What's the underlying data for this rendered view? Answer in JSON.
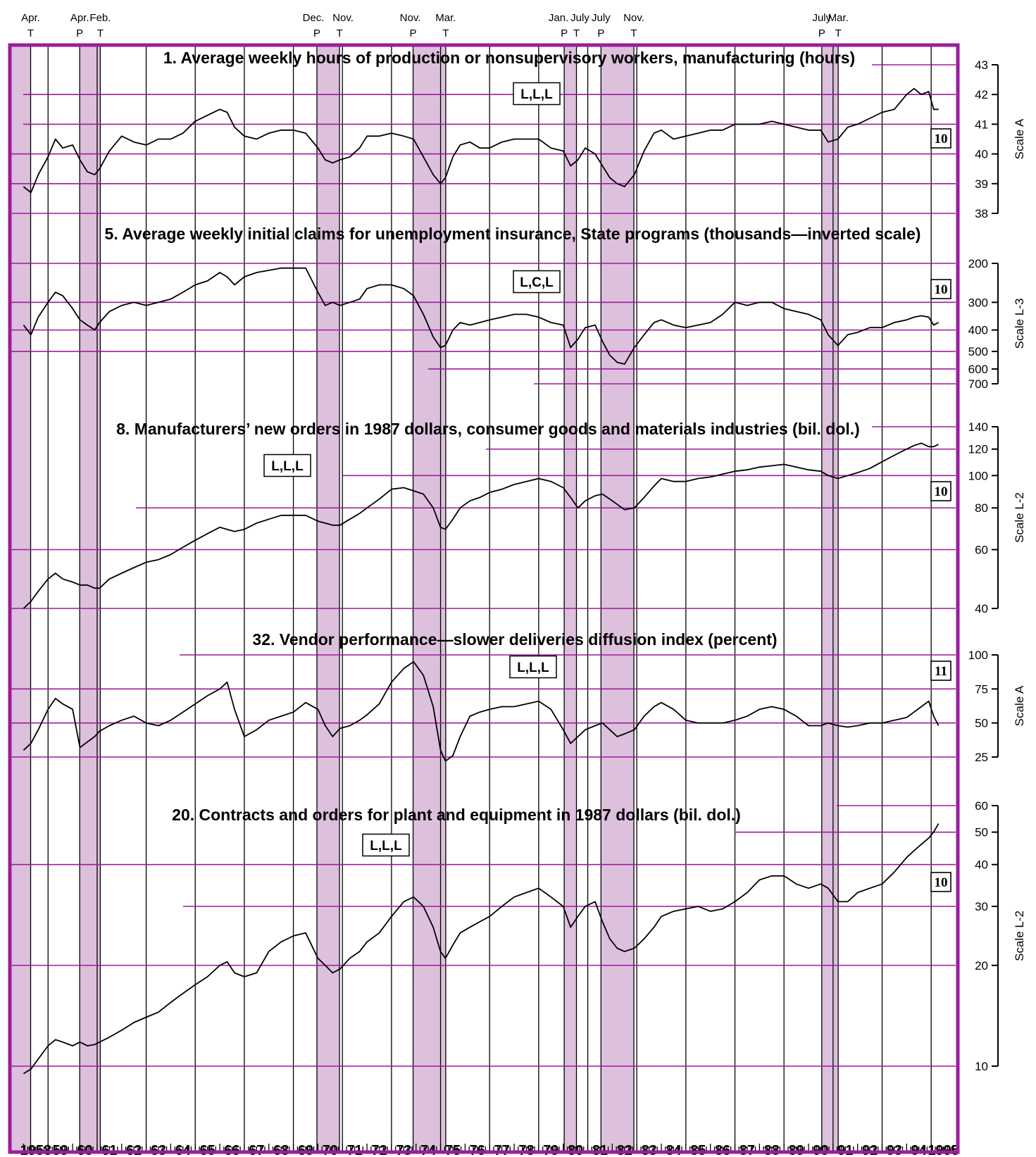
{
  "colors": {
    "frame": "#9c1c9c",
    "grid": "#9c1c9c",
    "shade": "#dcc0dc",
    "line": "#000000"
  },
  "turning_points": [
    {
      "date": "Apr.",
      "type": "T",
      "year": 1958.29
    },
    {
      "date": "Apr.",
      "type": "P",
      "year": 1960.29
    },
    {
      "date": "Feb.",
      "type": "T",
      "year": 1961.13
    },
    {
      "date": "Dec.",
      "type": "P",
      "year": 1969.96
    },
    {
      "date": "Nov.",
      "type": "T",
      "year": 1970.88
    },
    {
      "date": "Nov.",
      "type": "P",
      "year": 1973.88
    },
    {
      "date": "Mar.",
      "type": "T",
      "year": 1975.21
    },
    {
      "date": "Jan.",
      "type": "P",
      "year": 1980.04
    },
    {
      "date": "July",
      "type": "T",
      "year": 1980.54
    },
    {
      "date": "July",
      "type": "P",
      "year": 1981.54
    },
    {
      "date": "Nov.",
      "type": "T",
      "year": 1982.88
    },
    {
      "date": "July",
      "type": "P",
      "year": 1990.54
    },
    {
      "date": "Mar.",
      "type": "T",
      "year": 1991.21
    }
  ],
  "recessions": [
    [
      1957.5,
      1958.29
    ],
    [
      1960.29,
      1961.13
    ],
    [
      1969.96,
      1970.88
    ],
    [
      1973.88,
      1975.21
    ],
    [
      1980.04,
      1980.54
    ],
    [
      1981.54,
      1982.88
    ],
    [
      1990.54,
      1991.21
    ]
  ],
  "x_axis": {
    "labels": [
      "1958",
      "59",
      "60",
      "61",
      "62",
      "63",
      "64",
      "65",
      "66",
      "67",
      "68",
      "69",
      "70",
      "71",
      "72",
      "73",
      "74",
      "75",
      "76",
      "77",
      "78",
      "79",
      "80",
      "81",
      "82",
      "83",
      "84",
      "85",
      "86",
      "87",
      "88",
      "89",
      "90",
      "91",
      "92",
      "93",
      "94",
      "1995"
    ]
  },
  "chart_data": [
    {
      "type": "line",
      "title": "1. Average  weekly hours of production or nonsupervisory workers, manufacturing (hours)",
      "code": "L,L,L",
      "box": "10",
      "scale_label": "Scale A",
      "scale": "linear",
      "ticks": [
        "43",
        "42",
        "41",
        "40",
        "39",
        "38"
      ],
      "ylim": [
        38,
        43
      ],
      "x": [
        1958.0,
        1958.3,
        1958.6,
        1959.0,
        1959.3,
        1959.6,
        1960.0,
        1960.3,
        1960.6,
        1960.9,
        1961.1,
        1961.5,
        1962.0,
        1962.5,
        1963.0,
        1963.5,
        1964.0,
        1964.5,
        1965.0,
        1965.5,
        1966.0,
        1966.3,
        1966.6,
        1967.0,
        1967.5,
        1968.0,
        1968.5,
        1969.0,
        1969.5,
        1970.0,
        1970.3,
        1970.6,
        1970.9,
        1971.3,
        1971.7,
        1972.0,
        1972.5,
        1973.0,
        1973.5,
        1973.9,
        1974.3,
        1974.7,
        1975.0,
        1975.2,
        1975.5,
        1975.8,
        1976.2,
        1976.6,
        1977.0,
        1977.5,
        1978.0,
        1978.5,
        1979.0,
        1979.5,
        1980.0,
        1980.3,
        1980.6,
        1980.9,
        1981.3,
        1981.6,
        1981.9,
        1982.2,
        1982.5,
        1982.9,
        1983.3,
        1983.7,
        1984.0,
        1984.5,
        1985.0,
        1985.5,
        1986.0,
        1986.5,
        1987.0,
        1987.5,
        1988.0,
        1988.5,
        1989.0,
        1989.5,
        1990.0,
        1990.5,
        1990.8,
        1991.2,
        1991.6,
        1992.0,
        1992.5,
        1993.0,
        1993.5,
        1994.0,
        1994.3,
        1994.6,
        1994.9,
        1995.1,
        1995.3
      ],
      "values": [
        38.9,
        38.7,
        39.3,
        39.9,
        40.5,
        40.2,
        40.3,
        39.8,
        39.4,
        39.3,
        39.5,
        40.1,
        40.6,
        40.4,
        40.3,
        40.5,
        40.5,
        40.7,
        41.1,
        41.3,
        41.5,
        41.4,
        40.9,
        40.6,
        40.5,
        40.7,
        40.8,
        40.8,
        40.7,
        40.2,
        39.8,
        39.7,
        39.8,
        39.9,
        40.2,
        40.6,
        40.6,
        40.7,
        40.6,
        40.5,
        39.9,
        39.3,
        39.0,
        39.2,
        39.9,
        40.3,
        40.4,
        40.2,
        40.2,
        40.4,
        40.5,
        40.5,
        40.5,
        40.2,
        40.1,
        39.6,
        39.8,
        40.2,
        40.0,
        39.6,
        39.2,
        39.0,
        38.9,
        39.3,
        40.1,
        40.7,
        40.8,
        40.5,
        40.6,
        40.7,
        40.8,
        40.8,
        41.0,
        41.0,
        41.0,
        41.1,
        41.0,
        40.9,
        40.8,
        40.8,
        40.4,
        40.5,
        40.9,
        41.0,
        41.2,
        41.4,
        41.5,
        42.0,
        42.2,
        42.0,
        42.1,
        41.5,
        41.5
      ]
    },
    {
      "type": "line",
      "title": "5. Average weekly initial claims for unemployment  insurance,  State programs (thousands—inverted scale)",
      "code": "L,C,L",
      "box": "10",
      "scale_label": "Scale L-3",
      "scale": "log-inverted",
      "ticks": [
        "200",
        "300",
        "400",
        "500",
        "600",
        "700"
      ],
      "ylim": [
        200,
        700
      ],
      "x": [
        1958.0,
        1958.3,
        1958.6,
        1959.0,
        1959.3,
        1959.6,
        1960.0,
        1960.3,
        1960.6,
        1960.9,
        1961.1,
        1961.5,
        1962.0,
        1962.5,
        1963.0,
        1963.5,
        1964.0,
        1964.5,
        1965.0,
        1965.5,
        1966.0,
        1966.3,
        1966.6,
        1967.0,
        1967.5,
        1968.0,
        1968.5,
        1969.0,
        1969.5,
        1970.0,
        1970.3,
        1970.6,
        1970.9,
        1971.3,
        1971.7,
        1972.0,
        1972.5,
        1973.0,
        1973.5,
        1973.9,
        1974.3,
        1974.7,
        1975.0,
        1975.2,
        1975.5,
        1975.8,
        1976.2,
        1976.6,
        1977.0,
        1977.5,
        1978.0,
        1978.5,
        1979.0,
        1979.5,
        1980.0,
        1980.3,
        1980.6,
        1980.9,
        1981.3,
        1981.6,
        1981.9,
        1982.2,
        1982.5,
        1982.9,
        1983.3,
        1983.7,
        1984.0,
        1984.5,
        1985.0,
        1985.5,
        1986.0,
        1986.5,
        1987.0,
        1987.5,
        1988.0,
        1988.5,
        1989.0,
        1989.5,
        1990.0,
        1990.5,
        1990.8,
        1991.2,
        1991.6,
        1992.0,
        1992.5,
        1993.0,
        1993.5,
        1994.0,
        1994.3,
        1994.6,
        1994.9,
        1995.1,
        1995.3
      ],
      "values": [
        380,
        420,
        350,
        300,
        270,
        280,
        320,
        360,
        380,
        400,
        370,
        330,
        310,
        300,
        310,
        300,
        290,
        270,
        250,
        240,
        220,
        230,
        250,
        230,
        220,
        215,
        210,
        210,
        210,
        270,
        310,
        300,
        310,
        300,
        290,
        260,
        250,
        250,
        260,
        280,
        340,
        430,
        480,
        470,
        400,
        370,
        380,
        370,
        360,
        350,
        340,
        340,
        350,
        370,
        380,
        480,
        440,
        390,
        380,
        450,
        520,
        560,
        570,
        480,
        420,
        370,
        360,
        380,
        390,
        380,
        370,
        340,
        300,
        310,
        300,
        300,
        320,
        330,
        340,
        360,
        420,
        470,
        420,
        410,
        390,
        390,
        370,
        360,
        350,
        345,
        350,
        380,
        370
      ]
    },
    {
      "type": "line",
      "title": "8. Manufacturers’ new orders in 1987 dollars, consumer  goods and materials industries (bil. dol.)",
      "code": "L,L,L",
      "box": "10",
      "scale_label": "Scale L-2",
      "scale": "log",
      "ticks": [
        "140",
        "120",
        "100",
        "80",
        "60",
        "40"
      ],
      "ylim": [
        40,
        140
      ],
      "x": [
        1958.0,
        1958.3,
        1958.6,
        1959.0,
        1959.3,
        1959.6,
        1960.0,
        1960.3,
        1960.6,
        1960.9,
        1961.1,
        1961.5,
        1962.0,
        1962.5,
        1963.0,
        1963.5,
        1964.0,
        1964.5,
        1965.0,
        1965.5,
        1966.0,
        1966.3,
        1966.6,
        1967.0,
        1967.5,
        1968.0,
        1968.5,
        1969.0,
        1969.5,
        1970.0,
        1970.3,
        1970.6,
        1970.9,
        1971.3,
        1971.7,
        1972.0,
        1972.5,
        1973.0,
        1973.5,
        1973.9,
        1974.3,
        1974.7,
        1975.0,
        1975.2,
        1975.5,
        1975.8,
        1976.2,
        1976.6,
        1977.0,
        1977.5,
        1978.0,
        1978.5,
        1979.0,
        1979.5,
        1980.0,
        1980.3,
        1980.6,
        1980.9,
        1981.3,
        1981.6,
        1981.9,
        1982.2,
        1982.5,
        1982.9,
        1983.3,
        1983.7,
        1984.0,
        1984.5,
        1985.0,
        1985.5,
        1986.0,
        1986.5,
        1987.0,
        1987.5,
        1988.0,
        1988.5,
        1989.0,
        1989.5,
        1990.0,
        1990.5,
        1990.8,
        1991.2,
        1991.6,
        1992.0,
        1992.5,
        1993.0,
        1993.5,
        1994.0,
        1994.3,
        1994.6,
        1994.9,
        1995.1,
        1995.3
      ],
      "values": [
        40,
        42,
        45,
        49,
        51,
        49,
        48,
        47,
        47,
        46,
        46,
        49,
        51,
        53,
        55,
        56,
        58,
        61,
        64,
        67,
        70,
        69,
        68,
        69,
        72,
        74,
        76,
        76,
        76,
        73,
        72,
        71,
        71,
        74,
        77,
        80,
        85,
        91,
        92,
        90,
        88,
        80,
        70,
        69,
        74,
        80,
        84,
        86,
        89,
        91,
        94,
        96,
        98,
        96,
        92,
        86,
        80,
        84,
        87,
        88,
        85,
        82,
        79,
        80,
        86,
        93,
        98,
        96,
        96,
        98,
        99,
        101,
        103,
        104,
        106,
        107,
        108,
        106,
        104,
        103,
        100,
        98,
        100,
        102,
        105,
        110,
        115,
        120,
        123,
        125,
        122,
        122,
        124
      ]
    },
    {
      "type": "line",
      "title": "32. Vendor performance—slower deliveries diffusion index (percent)",
      "code": "L,L,L",
      "box": "11",
      "scale_label": "Scale A",
      "scale": "linear",
      "ticks": [
        "100",
        "75",
        "50",
        "25"
      ],
      "ylim": [
        25,
        100
      ],
      "x": [
        1958.0,
        1958.3,
        1958.6,
        1959.0,
        1959.3,
        1959.6,
        1960.0,
        1960.3,
        1960.6,
        1960.9,
        1961.1,
        1961.5,
        1962.0,
        1962.5,
        1963.0,
        1963.5,
        1964.0,
        1964.5,
        1965.0,
        1965.5,
        1966.0,
        1966.3,
        1966.6,
        1967.0,
        1967.5,
        1968.0,
        1968.5,
        1969.0,
        1969.5,
        1970.0,
        1970.3,
        1970.6,
        1970.9,
        1971.3,
        1971.7,
        1972.0,
        1972.5,
        1973.0,
        1973.5,
        1973.9,
        1974.3,
        1974.7,
        1975.0,
        1975.2,
        1975.5,
        1975.8,
        1976.2,
        1976.6,
        1977.0,
        1977.5,
        1978.0,
        1978.5,
        1979.0,
        1979.5,
        1980.0,
        1980.3,
        1980.6,
        1980.9,
        1981.3,
        1981.6,
        1981.9,
        1982.2,
        1982.5,
        1982.9,
        1983.3,
        1983.7,
        1984.0,
        1984.5,
        1985.0,
        1985.5,
        1986.0,
        1986.5,
        1987.0,
        1987.5,
        1988.0,
        1988.5,
        1989.0,
        1989.5,
        1990.0,
        1990.5,
        1990.8,
        1991.2,
        1991.6,
        1992.0,
        1992.5,
        1993.0,
        1993.5,
        1994.0,
        1994.3,
        1994.6,
        1994.9,
        1995.1,
        1995.3
      ],
      "values": [
        30,
        35,
        45,
        60,
        68,
        64,
        60,
        32,
        36,
        40,
        44,
        48,
        52,
        55,
        50,
        48,
        52,
        58,
        64,
        70,
        75,
        80,
        60,
        40,
        45,
        52,
        55,
        58,
        65,
        60,
        48,
        40,
        46,
        48,
        52,
        56,
        64,
        80,
        90,
        95,
        85,
        62,
        30,
        22,
        26,
        40,
        55,
        58,
        60,
        62,
        62,
        64,
        66,
        60,
        45,
        35,
        40,
        45,
        48,
        50,
        45,
        40,
        42,
        45,
        55,
        62,
        65,
        60,
        52,
        50,
        50,
        50,
        52,
        55,
        60,
        62,
        60,
        55,
        48,
        48,
        50,
        48,
        47,
        48,
        50,
        50,
        52,
        54,
        58,
        62,
        66,
        55,
        48
      ]
    },
    {
      "type": "line",
      "title": "20. Contracts and orders for plant and equipment in 1987 dollars  (bil. dol.)",
      "code": "L,L,L",
      "box": "10",
      "scale_label": "Scale L-2",
      "scale": "log",
      "ticks": [
        "60",
        "50",
        "40",
        "30",
        "20",
        "10"
      ],
      "ylim": [
        10,
        60
      ],
      "x": [
        1958.0,
        1958.3,
        1958.6,
        1959.0,
        1959.3,
        1959.6,
        1960.0,
        1960.3,
        1960.6,
        1960.9,
        1961.1,
        1961.5,
        1962.0,
        1962.5,
        1963.0,
        1963.5,
        1964.0,
        1964.5,
        1965.0,
        1965.5,
        1966.0,
        1966.3,
        1966.6,
        1967.0,
        1967.5,
        1968.0,
        1968.5,
        1969.0,
        1969.5,
        1970.0,
        1970.3,
        1970.6,
        1970.9,
        1971.3,
        1971.7,
        1972.0,
        1972.5,
        1973.0,
        1973.5,
        1973.9,
        1974.3,
        1974.7,
        1975.0,
        1975.2,
        1975.5,
        1975.8,
        1976.2,
        1976.6,
        1977.0,
        1977.5,
        1978.0,
        1978.5,
        1979.0,
        1979.5,
        1980.0,
        1980.3,
        1980.6,
        1980.9,
        1981.3,
        1981.6,
        1981.9,
        1982.2,
        1982.5,
        1982.9,
        1983.3,
        1983.7,
        1984.0,
        1984.5,
        1985.0,
        1985.5,
        1986.0,
        1986.5,
        1987.0,
        1987.5,
        1988.0,
        1988.5,
        1989.0,
        1989.5,
        1990.0,
        1990.5,
        1990.8,
        1991.2,
        1991.6,
        1992.0,
        1992.5,
        1993.0,
        1993.5,
        1994.0,
        1994.3,
        1994.6,
        1994.9,
        1995.1,
        1995.3
      ],
      "values": [
        9.5,
        9.8,
        10.5,
        11.5,
        12.0,
        11.8,
        11.5,
        11.8,
        11.5,
        11.6,
        11.8,
        12.2,
        12.8,
        13.5,
        14.0,
        14.5,
        15.5,
        16.5,
        17.5,
        18.5,
        20.0,
        20.5,
        19.0,
        18.5,
        19.0,
        22.0,
        23.5,
        24.5,
        25.0,
        21.0,
        20.0,
        19.0,
        19.5,
        21.0,
        22.0,
        23.5,
        25.0,
        28.0,
        31.0,
        32.0,
        30.0,
        26.0,
        22.0,
        21.0,
        23.0,
        25.0,
        26.0,
        27.0,
        28.0,
        30.0,
        32.0,
        33.0,
        34.0,
        32.0,
        30.0,
        26.0,
        28.0,
        30.0,
        31.0,
        27.0,
        24.0,
        22.5,
        22.0,
        22.5,
        24.0,
        26.0,
        28.0,
        29.0,
        29.5,
        30.0,
        29.0,
        29.5,
        31.0,
        33.0,
        36.0,
        37.0,
        37.0,
        35.0,
        34.0,
        35.0,
        34.0,
        31.0,
        31.0,
        33.0,
        34.0,
        35.0,
        38.0,
        42.0,
        44.0,
        46.0,
        48.0,
        50.0,
        53.0
      ]
    }
  ]
}
